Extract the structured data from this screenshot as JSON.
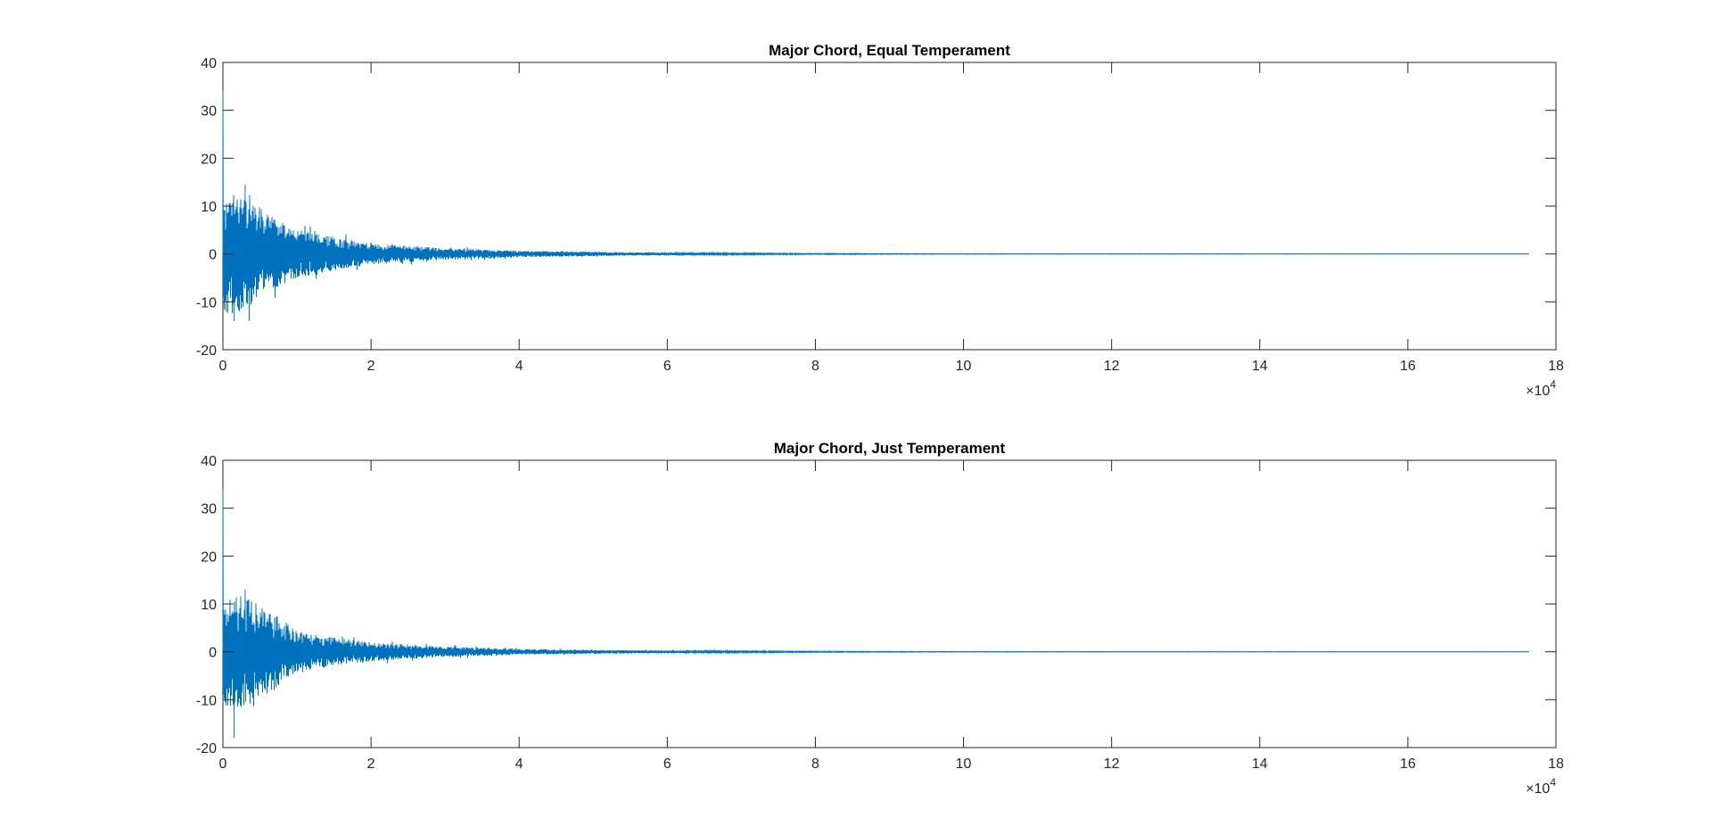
{
  "figure": {
    "background": "#ffffff",
    "axis_color": "#262626",
    "line_color": "#0072bd"
  },
  "chart_data": [
    {
      "type": "line",
      "title": "Major Chord, Equal Temperament",
      "xlabel": "",
      "ylabel": "",
      "xlim": [
        0,
        180000
      ],
      "ylim": [
        -20,
        40
      ],
      "xticks": [
        0,
        20000,
        40000,
        60000,
        80000,
        100000,
        120000,
        140000,
        160000,
        180000
      ],
      "xtick_labels": [
        "0",
        "2",
        "4",
        "6",
        "8",
        "10",
        "12",
        "14",
        "16",
        "18"
      ],
      "yticks": [
        -20,
        -10,
        0,
        10,
        20,
        30,
        40
      ],
      "ytick_labels": [
        "-20",
        "-10",
        "0",
        "10",
        "20",
        "30",
        "40"
      ],
      "x_multiplier": {
        "base": "×10",
        "exponent": "4"
      },
      "grid": false,
      "signal": {
        "x_end": 176400,
        "initial_spike": 34,
        "peak_max": 14.5,
        "peak_min": -14,
        "envelope_points": [
          [
            0,
            12
          ],
          [
            2000,
            13
          ],
          [
            5000,
            9
          ],
          [
            10000,
            5
          ],
          [
            15000,
            3.5
          ],
          [
            20000,
            2.2
          ],
          [
            30000,
            1.2
          ],
          [
            40000,
            0.7
          ],
          [
            60000,
            0.25
          ],
          [
            80000,
            0.1
          ],
          [
            100000,
            0.05
          ],
          [
            176400,
            0.02
          ]
        ]
      }
    },
    {
      "type": "line",
      "title": "Major Chord, Just Temperament",
      "xlabel": "",
      "ylabel": "",
      "xlim": [
        0,
        180000
      ],
      "ylim": [
        -20,
        40
      ],
      "xticks": [
        0,
        20000,
        40000,
        60000,
        80000,
        100000,
        120000,
        140000,
        160000,
        180000
      ],
      "xtick_labels": [
        "0",
        "2",
        "4",
        "6",
        "8",
        "10",
        "12",
        "14",
        "16",
        "18"
      ],
      "yticks": [
        -20,
        -10,
        0,
        10,
        20,
        30,
        40
      ],
      "ytick_labels": [
        "-20",
        "-10",
        "0",
        "10",
        "20",
        "30",
        "40"
      ],
      "x_multiplier": {
        "base": "×10",
        "exponent": "4"
      },
      "grid": false,
      "signal": {
        "x_end": 176400,
        "initial_spike": 34,
        "peak_max": 13,
        "peak_min": -18,
        "envelope_points": [
          [
            0,
            11
          ],
          [
            2000,
            12
          ],
          [
            5000,
            10
          ],
          [
            10000,
            4.5
          ],
          [
            15000,
            3
          ],
          [
            20000,
            2
          ],
          [
            30000,
            1.1
          ],
          [
            40000,
            0.6
          ],
          [
            60000,
            0.25
          ],
          [
            80000,
            0.1
          ],
          [
            100000,
            0.05
          ],
          [
            176400,
            0.02
          ]
        ]
      }
    }
  ]
}
